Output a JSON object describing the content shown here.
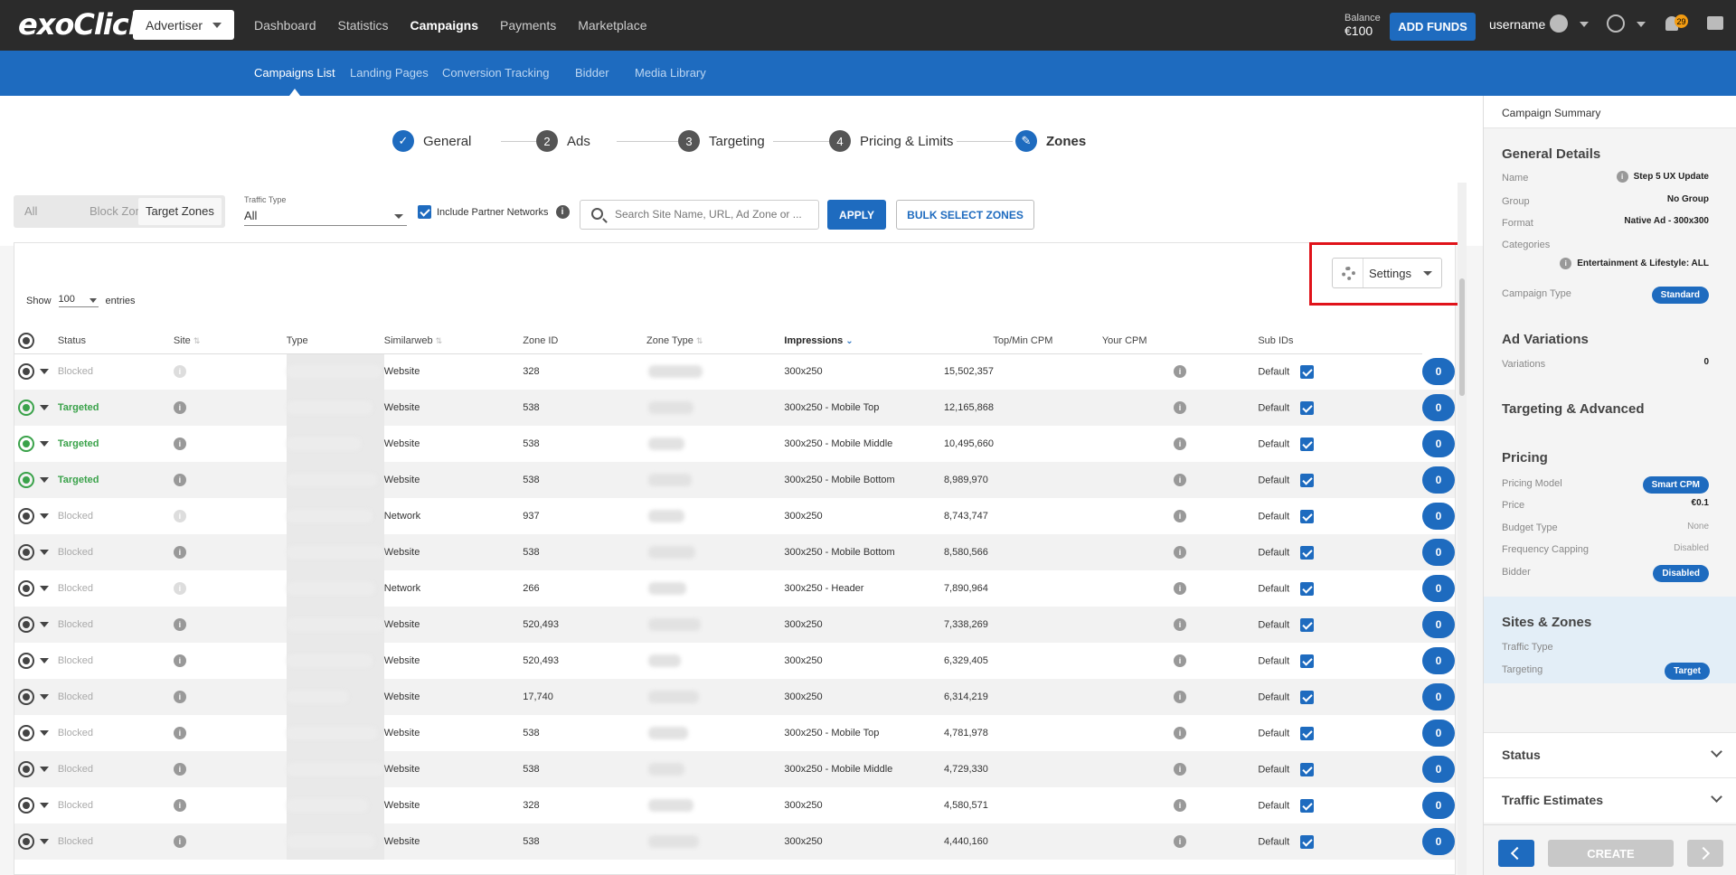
{
  "topbar": {
    "logo": "exoClick",
    "role": "Advertiser",
    "nav": [
      "Dashboard",
      "Statistics",
      "Campaigns",
      "Payments",
      "Marketplace"
    ],
    "active_nav": "Campaigns",
    "balance_label": "Balance",
    "balance_value": "€100",
    "add_funds": "ADD FUNDS",
    "username": "username",
    "notifications": "29"
  },
  "subnav": {
    "items": [
      "Campaigns List",
      "Landing Pages",
      "Conversion Tracking",
      "Bidder",
      "Media Library"
    ],
    "active": "Campaigns List"
  },
  "stepper": {
    "steps": [
      {
        "num": "✓",
        "label": "General"
      },
      {
        "num": "2",
        "label": "Ads"
      },
      {
        "num": "3",
        "label": "Targeting"
      },
      {
        "num": "4",
        "label": "Pricing & Limits"
      },
      {
        "num": "✎",
        "label": "Zones"
      }
    ],
    "active": "Zones"
  },
  "filters": {
    "segments": [
      "All",
      "Block Zones",
      "Target Zones"
    ],
    "selected_segment": "Target Zones",
    "traffic_type_label": "Traffic Type",
    "traffic_type_value": "All",
    "include_partner": "Include Partner Networks",
    "search_placeholder": "Search Site Name, URL, Ad Zone or ...",
    "apply": "APPLY",
    "bulk_select": "BULK SELECT ZONES"
  },
  "table_controls": {
    "settings": "Settings",
    "show": "Show",
    "entries_value": "100",
    "entries": "entries"
  },
  "table": {
    "headers": [
      "Status",
      "Site",
      "Type",
      "Similarweb",
      "Zone ID",
      "Zone Type",
      "Impressions",
      "Top/Min CPM",
      "Your CPM",
      "Sub IDs"
    ],
    "rows": [
      {
        "status": "Blocked",
        "type": "Website",
        "similarweb": "328",
        "zone_type": "300x250",
        "impressions": "15,502,357",
        "cpm": "Default",
        "subids": "0"
      },
      {
        "status": "Targeted",
        "type": "Website",
        "similarweb": "538",
        "zone_type": "300x250 - Mobile Top",
        "impressions": "12,165,868",
        "cpm": "Default",
        "subids": "0"
      },
      {
        "status": "Targeted",
        "type": "Website",
        "similarweb": "538",
        "zone_type": "300x250 - Mobile Middle",
        "impressions": "10,495,660",
        "cpm": "Default",
        "subids": "0"
      },
      {
        "status": "Targeted",
        "type": "Website",
        "similarweb": "538",
        "zone_type": "300x250 - Mobile Bottom",
        "impressions": "8,989,970",
        "cpm": "Default",
        "subids": "0"
      },
      {
        "status": "Blocked",
        "type": "Network",
        "similarweb": "937",
        "zone_type": "300x250",
        "impressions": "8,743,747",
        "cpm": "Default",
        "subids": "0"
      },
      {
        "status": "Blocked",
        "type": "Website",
        "similarweb": "538",
        "zone_type": "300x250 - Mobile Bottom",
        "impressions": "8,580,566",
        "cpm": "Default",
        "subids": "0"
      },
      {
        "status": "Blocked",
        "type": "Network",
        "similarweb": "266",
        "zone_type": "300x250 - Header",
        "impressions": "7,890,964",
        "cpm": "Default",
        "subids": "0"
      },
      {
        "status": "Blocked",
        "type": "Website",
        "similarweb": "520,493",
        "zone_type": "300x250",
        "impressions": "7,338,269",
        "cpm": "Default",
        "subids": "0"
      },
      {
        "status": "Blocked",
        "type": "Website",
        "similarweb": "520,493",
        "zone_type": "300x250",
        "impressions": "6,329,405",
        "cpm": "Default",
        "subids": "0"
      },
      {
        "status": "Blocked",
        "type": "Website",
        "similarweb": "17,740",
        "zone_type": "300x250",
        "impressions": "6,314,219",
        "cpm": "Default",
        "subids": "0"
      },
      {
        "status": "Blocked",
        "type": "Website",
        "similarweb": "538",
        "zone_type": "300x250 - Mobile Top",
        "impressions": "4,781,978",
        "cpm": "Default",
        "subids": "0"
      },
      {
        "status": "Blocked",
        "type": "Website",
        "similarweb": "538",
        "zone_type": "300x250 - Mobile Middle",
        "impressions": "4,729,330",
        "cpm": "Default",
        "subids": "0"
      },
      {
        "status": "Blocked",
        "type": "Website",
        "similarweb": "328",
        "zone_type": "300x250",
        "impressions": "4,580,571",
        "cpm": "Default",
        "subids": "0"
      },
      {
        "status": "Blocked",
        "type": "Website",
        "similarweb": "538",
        "zone_type": "300x250",
        "impressions": "4,440,160",
        "cpm": "Default",
        "subids": "0"
      }
    ]
  },
  "summary": {
    "title": "Campaign Summary",
    "general": {
      "heading": "General Details",
      "name_k": "Name",
      "name_v": "Step 5 UX Update",
      "group_k": "Group",
      "group_v": "No Group",
      "format_k": "Format",
      "format_v": "Native Ad - 300x300",
      "categories_k": "Categories",
      "categories_v": "Entertainment & Lifestyle: ALL",
      "type_k": "Campaign Type",
      "type_v": "Standard"
    },
    "ad_variations": {
      "heading": "Ad Variations",
      "k": "Variations",
      "v": "0"
    },
    "targeting": {
      "heading": "Targeting & Advanced"
    },
    "pricing": {
      "heading": "Pricing",
      "model_k": "Pricing Model",
      "model_v": "Smart CPM",
      "price_k": "Price",
      "price_v": "€0.1",
      "budget_k": "Budget Type",
      "budget_v": "None",
      "freq_k": "Frequency Capping",
      "freq_v": "Disabled",
      "bidder_k": "Bidder",
      "bidder_v": "Disabled"
    },
    "sites": {
      "heading": "Sites & Zones",
      "traffic_k": "Traffic Type",
      "targeting_k": "Targeting",
      "targeting_v": "Target"
    },
    "status": "Status",
    "traffic_estimates": "Traffic Estimates",
    "create": "CREATE"
  },
  "colors": {
    "brand": "#1e6bbf",
    "topbar": "#2b2b2b",
    "targeted": "#3aa24a",
    "highlight": "#e0131a"
  }
}
